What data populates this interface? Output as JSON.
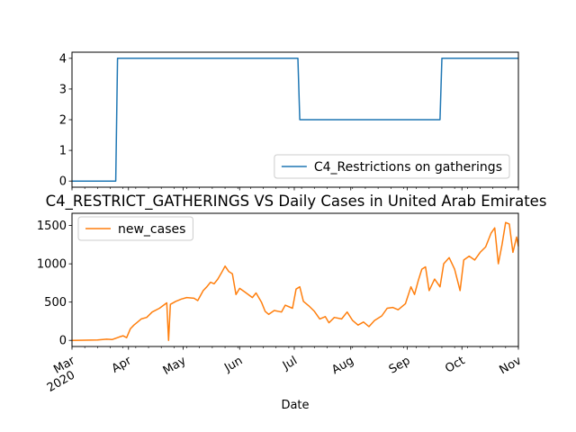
{
  "chart_data": [
    {
      "type": "line",
      "title": "",
      "xlabel": "",
      "ylabel": "",
      "x_range": [
        "2020-03-01",
        "2020-11-01"
      ],
      "ylim": [
        -0.2,
        4.2
      ],
      "y_ticks": [
        0,
        1,
        2,
        3,
        4
      ],
      "grid": false,
      "legend_position": "lower-right",
      "series": [
        {
          "name": "C4_Restrictions on gatherings",
          "color": "#1f77b4",
          "points": [
            [
              "2020-03-01",
              0
            ],
            [
              "2020-03-25",
              0
            ],
            [
              "2020-03-26",
              4
            ],
            [
              "2020-07-03",
              4
            ],
            [
              "2020-07-04",
              2
            ],
            [
              "2020-09-19",
              2
            ],
            [
              "2020-09-20",
              4
            ],
            [
              "2020-11-01",
              4
            ]
          ]
        }
      ]
    },
    {
      "type": "line",
      "title": "C4_RESTRICT_GATHERINGS VS Daily Cases in United Arab Emirates",
      "xlabel": "Date",
      "ylabel": "",
      "x_range": [
        "2020-03-01",
        "2020-11-01"
      ],
      "ylim": [
        -80,
        1660
      ],
      "y_ticks": [
        0,
        500,
        1000,
        1500
      ],
      "x_ticks": [
        {
          "date": "2020-03-01",
          "label": "Mar",
          "sub": "2020"
        },
        {
          "date": "2020-04-01",
          "label": "Apr"
        },
        {
          "date": "2020-05-01",
          "label": "May"
        },
        {
          "date": "2020-06-01",
          "label": "Jun"
        },
        {
          "date": "2020-07-01",
          "label": "Jul"
        },
        {
          "date": "2020-08-01",
          "label": "Aug"
        },
        {
          "date": "2020-09-01",
          "label": "Sep"
        },
        {
          "date": "2020-10-01",
          "label": "Oct"
        },
        {
          "date": "2020-11-01",
          "label": "Nov"
        }
      ],
      "grid": false,
      "legend_position": "upper-left",
      "series": [
        {
          "name": "new_cases",
          "color": "#ff7f0e",
          "points": [
            [
              "2020-03-01",
              0
            ],
            [
              "2020-03-08",
              2
            ],
            [
              "2020-03-15",
              5
            ],
            [
              "2020-03-20",
              15
            ],
            [
              "2020-03-23",
              10
            ],
            [
              "2020-03-27",
              45
            ],
            [
              "2020-03-29",
              60
            ],
            [
              "2020-03-31",
              35
            ],
            [
              "2020-04-02",
              150
            ],
            [
              "2020-04-04",
              200
            ],
            [
              "2020-04-06",
              240
            ],
            [
              "2020-04-08",
              280
            ],
            [
              "2020-04-11",
              300
            ],
            [
              "2020-04-14",
              370
            ],
            [
              "2020-04-18",
              420
            ],
            [
              "2020-04-22",
              490
            ],
            [
              "2020-04-23",
              0
            ],
            [
              "2020-04-24",
              470
            ],
            [
              "2020-04-27",
              510
            ],
            [
              "2020-04-30",
              540
            ],
            [
              "2020-05-03",
              560
            ],
            [
              "2020-05-07",
              550
            ],
            [
              "2020-05-09",
              520
            ],
            [
              "2020-05-12",
              650
            ],
            [
              "2020-05-14",
              700
            ],
            [
              "2020-05-16",
              760
            ],
            [
              "2020-05-18",
              740
            ],
            [
              "2020-05-20",
              800
            ],
            [
              "2020-05-22",
              880
            ],
            [
              "2020-05-24",
              970
            ],
            [
              "2020-05-26",
              900
            ],
            [
              "2020-05-28",
              870
            ],
            [
              "2020-05-30",
              600
            ],
            [
              "2020-06-01",
              680
            ],
            [
              "2020-06-04",
              630
            ],
            [
              "2020-06-08",
              560
            ],
            [
              "2020-06-10",
              620
            ],
            [
              "2020-06-13",
              500
            ],
            [
              "2020-06-15",
              380
            ],
            [
              "2020-06-17",
              340
            ],
            [
              "2020-06-20",
              390
            ],
            [
              "2020-06-24",
              370
            ],
            [
              "2020-06-26",
              460
            ],
            [
              "2020-06-30",
              420
            ],
            [
              "2020-07-02",
              670
            ],
            [
              "2020-07-04",
              700
            ],
            [
              "2020-07-06",
              510
            ],
            [
              "2020-07-09",
              450
            ],
            [
              "2020-07-12",
              380
            ],
            [
              "2020-07-15",
              280
            ],
            [
              "2020-07-18",
              310
            ],
            [
              "2020-07-20",
              230
            ],
            [
              "2020-07-23",
              300
            ],
            [
              "2020-07-27",
              280
            ],
            [
              "2020-07-30",
              370
            ],
            [
              "2020-08-02",
              260
            ],
            [
              "2020-08-05",
              200
            ],
            [
              "2020-08-08",
              240
            ],
            [
              "2020-08-11",
              180
            ],
            [
              "2020-08-14",
              260
            ],
            [
              "2020-08-18",
              320
            ],
            [
              "2020-08-21",
              420
            ],
            [
              "2020-08-24",
              430
            ],
            [
              "2020-08-27",
              400
            ],
            [
              "2020-08-31",
              480
            ],
            [
              "2020-09-03",
              700
            ],
            [
              "2020-09-05",
              600
            ],
            [
              "2020-09-07",
              780
            ],
            [
              "2020-09-09",
              930
            ],
            [
              "2020-09-11",
              960
            ],
            [
              "2020-09-13",
              650
            ],
            [
              "2020-09-16",
              800
            ],
            [
              "2020-09-19",
              700
            ],
            [
              "2020-09-21",
              1000
            ],
            [
              "2020-09-24",
              1080
            ],
            [
              "2020-09-27",
              930
            ],
            [
              "2020-09-30",
              650
            ],
            [
              "2020-10-02",
              1050
            ],
            [
              "2020-10-05",
              1100
            ],
            [
              "2020-10-08",
              1050
            ],
            [
              "2020-10-11",
              1150
            ],
            [
              "2020-10-14",
              1220
            ],
            [
              "2020-10-17",
              1400
            ],
            [
              "2020-10-19",
              1470
            ],
            [
              "2020-10-21",
              1000
            ],
            [
              "2020-10-23",
              1250
            ],
            [
              "2020-10-25",
              1540
            ],
            [
              "2020-10-27",
              1520
            ],
            [
              "2020-10-29",
              1150
            ],
            [
              "2020-10-31",
              1350
            ],
            [
              "2020-11-01",
              1230
            ]
          ]
        }
      ]
    }
  ]
}
